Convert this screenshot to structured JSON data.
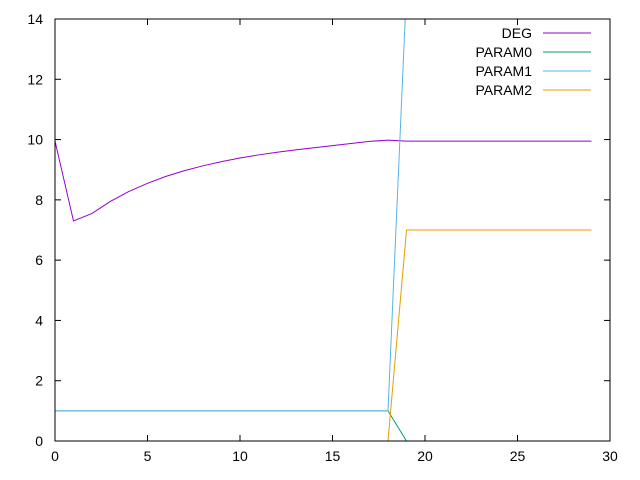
{
  "chart_data": {
    "type": "line",
    "title": "",
    "xlabel": "",
    "ylabel": "",
    "xlim": [
      0,
      30
    ],
    "ylim": [
      0,
      14
    ],
    "x_ticks": [
      0,
      5,
      10,
      15,
      20,
      25,
      30
    ],
    "y_ticks": [
      0,
      2,
      4,
      6,
      8,
      10,
      12,
      14
    ],
    "grid": false,
    "legend_position": "top-right",
    "series": [
      {
        "name": "DEG",
        "color": "#9400d3",
        "x": [
          0,
          1,
          2,
          3,
          4,
          5,
          6,
          7,
          8,
          9,
          10,
          11,
          12,
          13,
          14,
          15,
          16,
          17,
          18,
          19,
          20,
          21,
          22,
          23,
          24,
          25,
          26,
          27,
          28,
          29
        ],
        "y": [
          9.95,
          7.3,
          7.55,
          7.95,
          8.28,
          8.55,
          8.78,
          8.97,
          9.13,
          9.27,
          9.39,
          9.49,
          9.58,
          9.66,
          9.73,
          9.8,
          9.87,
          9.94,
          9.98,
          9.95,
          9.95,
          9.95,
          9.95,
          9.95,
          9.95,
          9.95,
          9.95,
          9.95,
          9.95,
          9.95
        ]
      },
      {
        "name": "PARAM0",
        "color": "#009e73",
        "x": [
          0,
          1,
          2,
          3,
          4,
          5,
          6,
          7,
          8,
          9,
          10,
          11,
          12,
          13,
          14,
          15,
          16,
          17,
          18,
          19
        ],
        "y": [
          1,
          1,
          1,
          1,
          1,
          1,
          1,
          1,
          1,
          1,
          1,
          1,
          1,
          1,
          1,
          1,
          1,
          1,
          1,
          0
        ]
      },
      {
        "name": "PARAM1",
        "color": "#56b4e9",
        "x": [
          0,
          1,
          2,
          3,
          4,
          5,
          6,
          7,
          8,
          9,
          10,
          11,
          12,
          13,
          14,
          15,
          16,
          17,
          18,
          19
        ],
        "y": [
          1,
          1,
          1,
          1,
          1,
          1,
          1,
          1,
          1,
          1,
          1,
          1,
          1,
          1,
          1,
          1,
          1,
          1,
          1,
          15
        ]
      },
      {
        "name": "PARAM2",
        "color": "#e69f00",
        "x": [
          18,
          19,
          20,
          21,
          22,
          23,
          24,
          25,
          26,
          27,
          28,
          29
        ],
        "y": [
          0,
          7,
          7,
          7,
          7,
          7,
          7,
          7,
          7,
          7,
          7,
          7
        ]
      }
    ]
  }
}
